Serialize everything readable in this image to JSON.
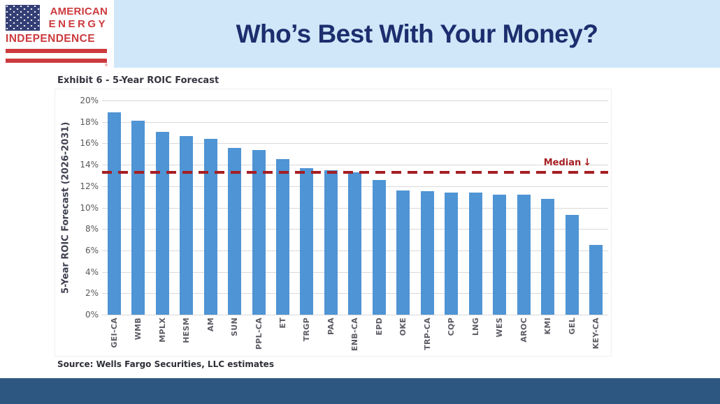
{
  "header": {
    "logo": {
      "line1": "AMERICAN",
      "line2": "ENERGY",
      "line3": "INDEPENDENCE",
      "registered_mark": "®"
    },
    "title": "Who’s Best With Your Money?"
  },
  "chart": {
    "exhibit_title": "Exhibit 6 - 5-Year ROIC Forecast",
    "y_axis_title": "5-Year ROIC Forecast (2026-2031)",
    "median_label": "Median",
    "median_arrow": "↓",
    "source": "Source: Wells Fargo Securities, LLC estimates"
  },
  "chart_data": {
    "type": "bar",
    "title": "Exhibit 6 - 5-Year ROIC Forecast",
    "xlabel": "",
    "ylabel": "5-Year ROIC Forecast (2026-2031)",
    "categories": [
      "GEI-CA",
      "WMB",
      "MPLX",
      "HESM",
      "AM",
      "SUN",
      "PPL-CA",
      "ET",
      "TRGP",
      "PAA",
      "ENB-CA",
      "EPD",
      "OKE",
      "TRP-CA",
      "CQP",
      "LNG",
      "WES",
      "AROC",
      "KMI",
      "GEL",
      "KEY-CA"
    ],
    "values": [
      18.9,
      18.1,
      17.1,
      16.7,
      16.4,
      15.6,
      15.4,
      14.5,
      13.7,
      13.5,
      13.3,
      12.6,
      11.6,
      11.5,
      11.4,
      11.4,
      11.2,
      11.2,
      10.8,
      9.3,
      6.5
    ],
    "median": 13.3,
    "ylim": [
      0,
      20
    ],
    "y_ticks": [
      "20%",
      "18%",
      "16%",
      "14%",
      "12%",
      "10%",
      "8%",
      "6%",
      "4%",
      "2%",
      "0%"
    ],
    "grid": true,
    "legend": false,
    "bar_color": "#4f94d4",
    "median_color": "#a51e22"
  },
  "colors": {
    "header_background": "#cfe7f8",
    "title_text": "#1c2e6e",
    "logo_red": "#cc3a3e",
    "logo_canton_blue": "#333e75",
    "footer_bar": "#2d5681",
    "bar_blue": "#4f94d4",
    "median_red": "#a51e22"
  }
}
